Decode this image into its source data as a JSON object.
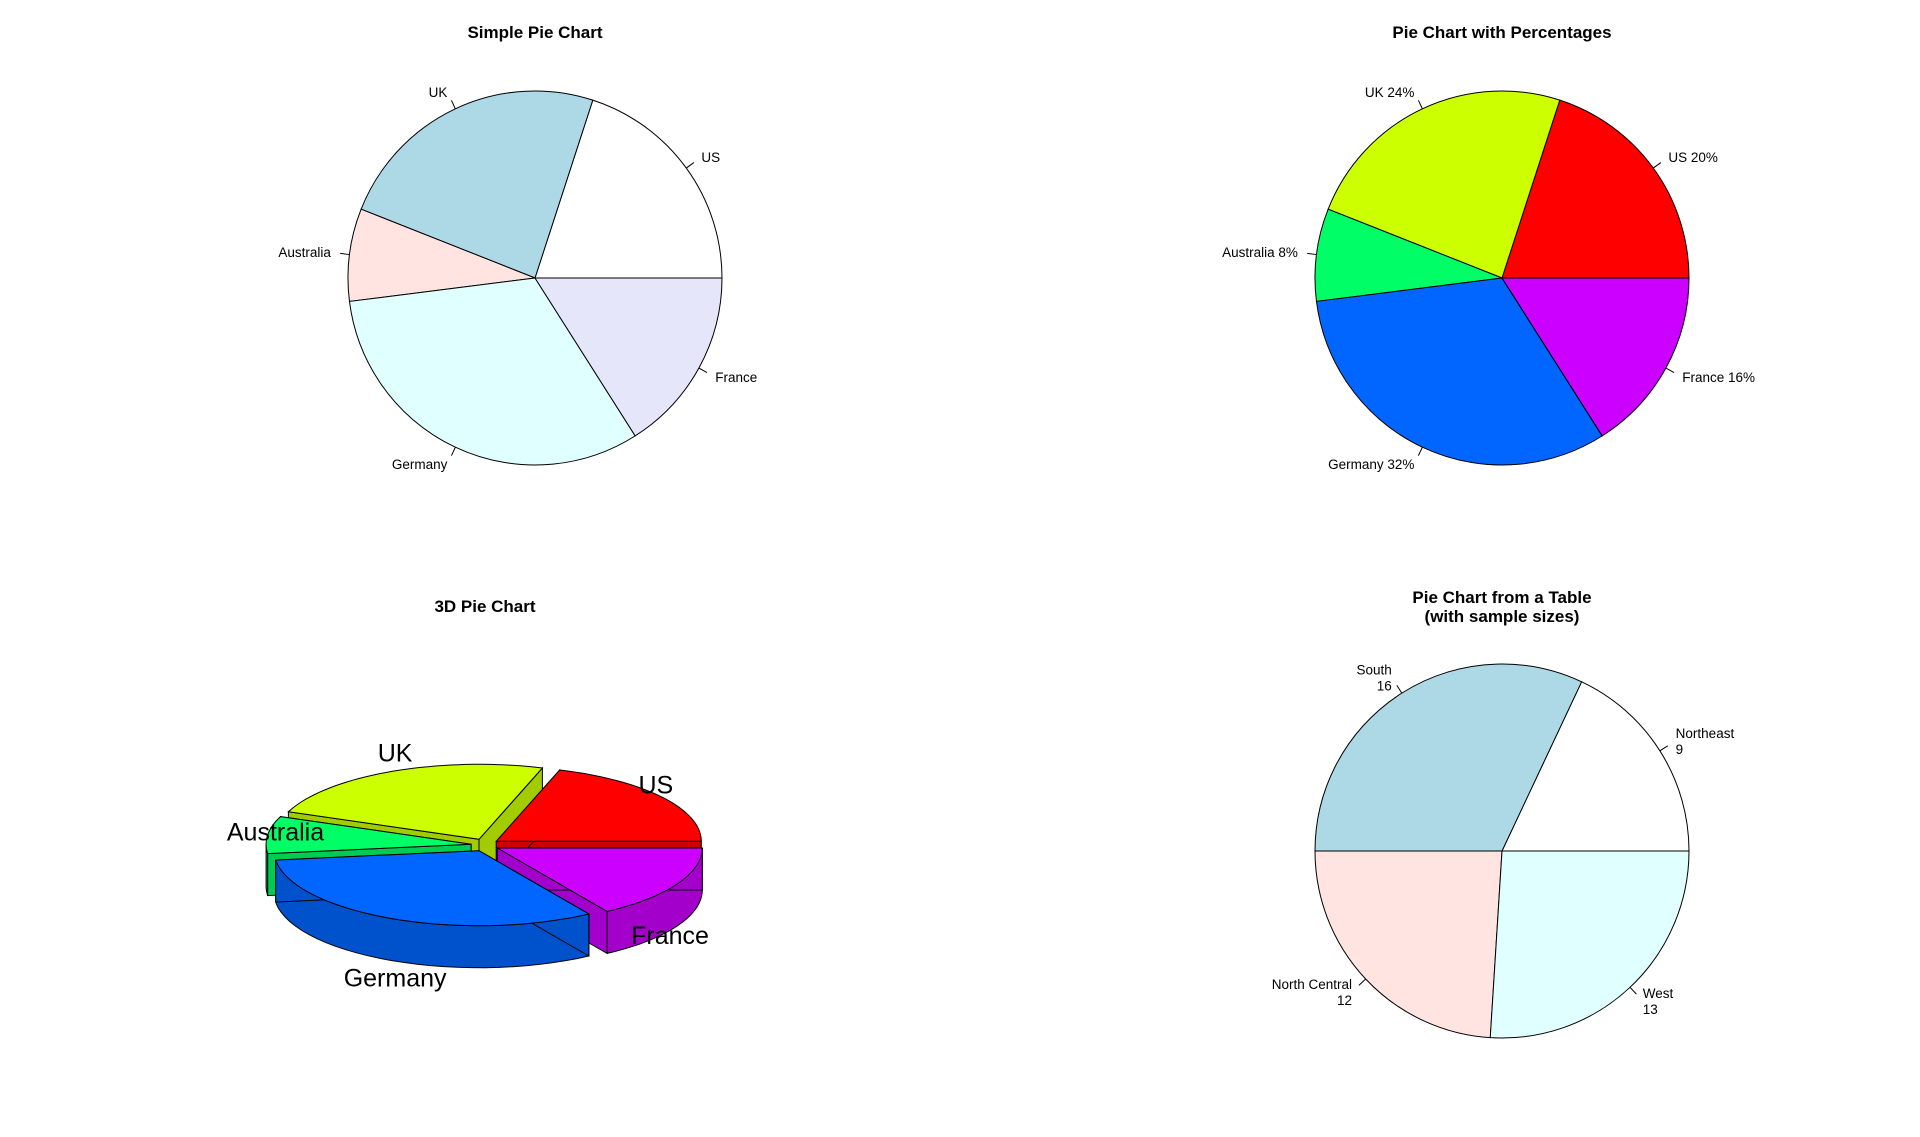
{
  "chart_data": [
    {
      "type": "pie",
      "title": "Simple Pie Chart",
      "categories": [
        "US",
        "UK",
        "Australia",
        "Germany",
        "France"
      ],
      "values": [
        10,
        12,
        4,
        16,
        8
      ],
      "labels": [
        "US",
        "UK",
        "Australia",
        "Germany",
        "France"
      ],
      "colors": [
        "#FFFFFF",
        "#ADD8E6",
        "#FFE4E1",
        "#E0FFFF",
        "#E6E6FA"
      ]
    },
    {
      "type": "pie",
      "title": "Pie Chart with Percentages",
      "categories": [
        "US",
        "UK",
        "Australia",
        "Germany",
        "France"
      ],
      "values": [
        10,
        12,
        4,
        16,
        8
      ],
      "labels": [
        "US 20%",
        "UK 24%",
        "Australia 8%",
        "Germany 32%",
        "France 16%"
      ],
      "colors": [
        "#FF0000",
        "#CCFF00",
        "#00FF66",
        "#0066FF",
        "#CC00FF"
      ]
    },
    {
      "type": "pie",
      "title": "3D Pie Chart",
      "categories": [
        "US",
        "UK",
        "Australia",
        "Germany",
        "France"
      ],
      "values": [
        10,
        12,
        4,
        16,
        8
      ],
      "labels": [
        "US",
        "UK",
        "Australia",
        "Germany",
        "France"
      ],
      "colors": [
        "#FF0000",
        "#CCFF00",
        "#00FF66",
        "#0066FF",
        "#CC00FF"
      ],
      "side_colors": [
        "#CC0000",
        "#A3CC00",
        "#00CC52",
        "#0052CC",
        "#A300CC"
      ]
    },
    {
      "type": "pie",
      "title": "Pie Chart from a Table\n(with sample sizes)",
      "categories": [
        "Northeast",
        "South",
        "North Central",
        "West"
      ],
      "values": [
        9,
        16,
        12,
        13
      ],
      "labels": [
        "Northeast\n9",
        "South\n16",
        "North Central\n12",
        "West\n13"
      ],
      "colors": [
        "#FFFFFF",
        "#ADD8E6",
        "#FFE4E1",
        "#E0FFFF"
      ]
    }
  ]
}
